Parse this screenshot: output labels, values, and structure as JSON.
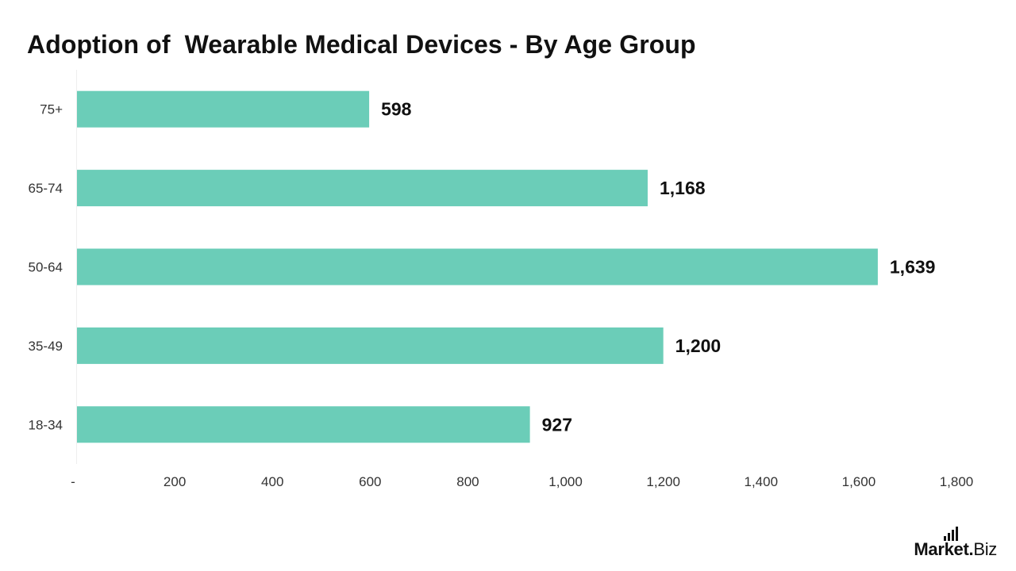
{
  "chart_data": {
    "type": "bar",
    "orientation": "horizontal",
    "title": "Adoption of  Wearable Medical Devices - By Age Group",
    "categories": [
      "75+",
      "65-74",
      "50-64",
      "35-49",
      "18-34"
    ],
    "values": [
      598,
      1168,
      1639,
      1200,
      927
    ],
    "value_labels": [
      "598",
      "1,168",
      "1,639",
      "1,200",
      "927"
    ],
    "xlim": [
      0,
      1800
    ],
    "x_ticks": [
      0,
      200,
      400,
      600,
      800,
      1000,
      1200,
      1400,
      1600,
      1800
    ],
    "x_tick_labels": [
      "-",
      "200",
      "400",
      "600",
      "800",
      "1,000",
      "1,200",
      "1,400",
      "1,600",
      "1,800"
    ],
    "xlabel": "",
    "ylabel": "",
    "grid": false,
    "legend": "none",
    "bar_color": "#6BCDB8"
  },
  "brand": {
    "name": "Market",
    "dot": ".",
    "suffix": "Biz"
  }
}
